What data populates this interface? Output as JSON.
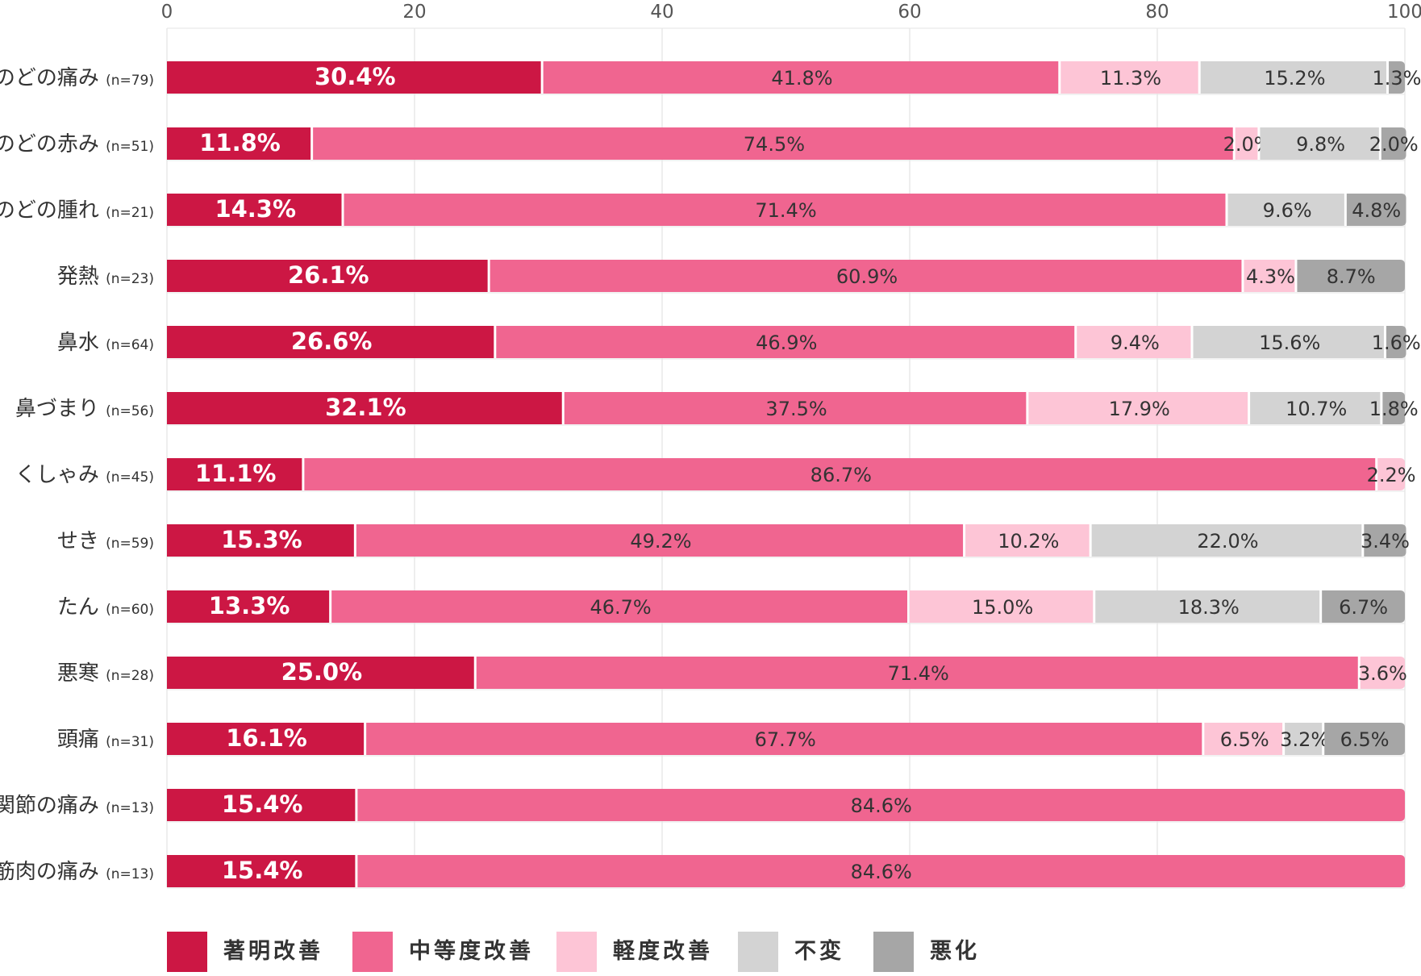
{
  "chart_data": {
    "type": "bar",
    "orientation": "horizontal",
    "stacked": true,
    "xlim": [
      0,
      100
    ],
    "x_ticks": [
      0,
      20,
      40,
      60,
      80,
      100
    ],
    "grid": "vertical",
    "legend_position": "bottom",
    "categories": [
      {
        "label": "のどの痛み",
        "n": "(n=79)"
      },
      {
        "label": "のどの赤み",
        "n": "(n=51)"
      },
      {
        "label": "のどの腫れ",
        "n": "(n=21)"
      },
      {
        "label": "発熱",
        "n": "(n=23)"
      },
      {
        "label": "鼻水",
        "n": "(n=64)"
      },
      {
        "label": "鼻づまり",
        "n": "(n=56)"
      },
      {
        "label": "くしゃみ",
        "n": "(n=45)"
      },
      {
        "label": "せき",
        "n": "(n=59)"
      },
      {
        "label": "たん",
        "n": "(n=60)"
      },
      {
        "label": "悪寒",
        "n": "(n=28)"
      },
      {
        "label": "頭痛",
        "n": "(n=31)"
      },
      {
        "label": "関節の痛み",
        "n": "(n=13)"
      },
      {
        "label": "筋肉の痛み",
        "n": "(n=13)"
      }
    ],
    "series": [
      {
        "name": "著明改善",
        "color": "#cc1744",
        "values": [
          30.4,
          11.8,
          14.3,
          26.1,
          26.6,
          32.1,
          11.1,
          15.3,
          13.3,
          25.0,
          16.1,
          15.4,
          15.4
        ]
      },
      {
        "name": "中等度改善",
        "color": "#f06590",
        "values": [
          41.8,
          74.5,
          71.4,
          60.9,
          46.9,
          37.5,
          86.7,
          49.2,
          46.7,
          71.4,
          67.7,
          84.6,
          84.6
        ]
      },
      {
        "name": "軽度改善",
        "color": "#fdc5d6",
        "values": [
          11.3,
          2.0,
          0,
          4.3,
          9.4,
          17.9,
          2.2,
          10.2,
          15.0,
          3.6,
          6.5,
          0,
          0
        ]
      },
      {
        "name": "不変",
        "color": "#d3d3d3",
        "values": [
          15.2,
          9.8,
          9.6,
          0,
          15.6,
          10.7,
          0,
          22.0,
          18.3,
          0,
          3.2,
          0,
          0
        ]
      },
      {
        "name": "悪化",
        "color": "#a6a6a6",
        "values": [
          1.3,
          2.0,
          4.8,
          8.7,
          1.6,
          1.8,
          0,
          3.4,
          6.7,
          0,
          6.5,
          0,
          0
        ]
      }
    ]
  }
}
